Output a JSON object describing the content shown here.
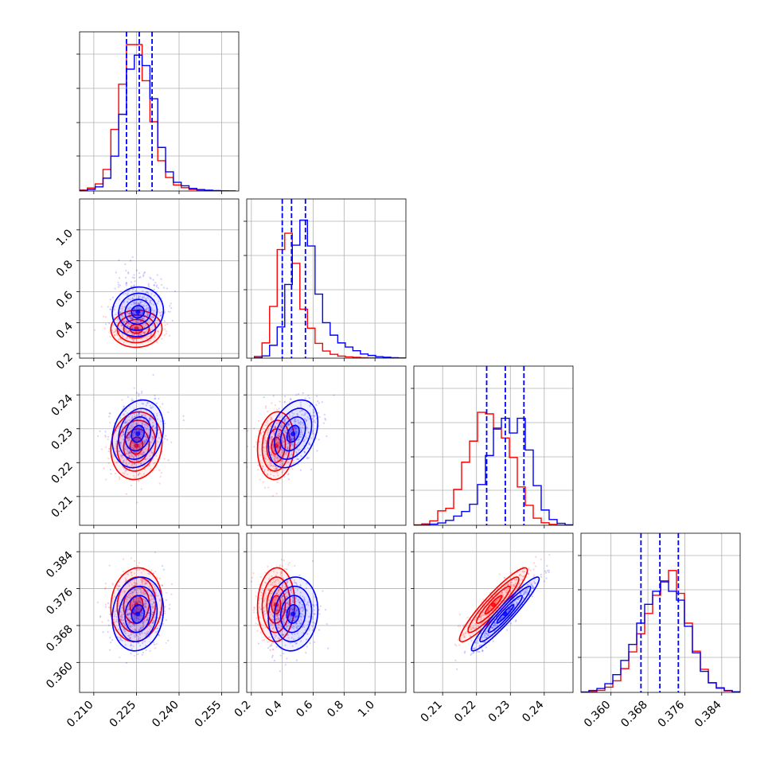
{
  "chart_data": {
    "type": "corner",
    "title": "",
    "colors": {
      "series_a": "#0000ff",
      "series_b": "#ff0000",
      "grid": "#b0b0b0",
      "frame": "#000000"
    },
    "parameters": [
      {
        "range": [
          0.205,
          0.261
        ],
        "ticks": [
          0.21,
          0.225,
          0.24,
          0.255
        ],
        "tick_labels": [
          "0.210",
          "0.225",
          "0.240",
          "0.255"
        ]
      },
      {
        "range": [
          0.17,
          1.2
        ],
        "ticks": [
          0.2,
          0.4,
          0.6,
          0.8,
          1.0
        ],
        "tick_labels": [
          "0.2",
          "0.4",
          "0.6",
          "0.8",
          "1.0"
        ]
      },
      {
        "range": [
          0.2015,
          0.2485
        ],
        "ticks": [
          0.21,
          0.22,
          0.23,
          0.24
        ],
        "tick_labels": [
          "0.21",
          "0.22",
          "0.23",
          "0.24"
        ]
      },
      {
        "range": [
          0.3535,
          0.388
        ],
        "ticks": [
          0.36,
          0.368,
          0.376,
          0.384
        ],
        "tick_labels": [
          "0.360",
          "0.368",
          "0.376",
          "0.384"
        ]
      }
    ],
    "series": [
      {
        "color": "#0000ff",
        "mean": [
          0.2255,
          0.47,
          0.2285,
          0.3705
        ],
        "sd": [
          0.0045,
          0.08,
          0.005,
          0.004
        ],
        "q16": [
          0.2215,
          0.4,
          0.223,
          0.3665
        ],
        "q50": [
          0.226,
          0.46,
          0.2285,
          0.3706
        ],
        "q84": [
          0.2305,
          0.55,
          0.234,
          0.3746
        ]
      },
      {
        "color": "#ff0000",
        "mean": [
          0.225,
          0.36,
          0.225,
          0.3725
        ],
        "sd": [
          0.0045,
          0.06,
          0.005,
          0.004
        ]
      }
    ],
    "histograms": [
      {
        "bins": [
          0.205,
          0.26
        ],
        "a": [
          0.3,
          1.0,
          2.6,
          8.1,
          22.0,
          48.4,
          76.9,
          85.7,
          79.1,
          58.2,
          27.5,
          12.1,
          5.5,
          3.3,
          1.6,
          0.9,
          0.5,
          0.3,
          0.1,
          0
        ],
        "b": [
          0.6,
          1.9,
          4.5,
          13.6,
          38.9,
          67.4,
          92.4,
          92.4,
          69.6,
          43.7,
          19.1,
          8.5,
          3.8,
          2.1,
          1.0,
          0.6,
          0.3,
          0.1,
          0,
          0
        ]
      },
      {
        "bins": [
          0.22,
          1.2
        ],
        "a": [
          0.3,
          1.4,
          8.1,
          19.7,
          46.5,
          71.3,
          87.1,
          70.8,
          40.4,
          22.4,
          14.5,
          9.6,
          7.0,
          4.7,
          2.6,
          1.7,
          0.9,
          0.6,
          0.3,
          0.1
        ],
        "b": [
          1.1,
          9.6,
          32.6,
          68.5,
          78.8,
          59.8,
          30.9,
          18.9,
          9.3,
          4.5,
          2.4,
          1.3,
          0.8,
          0.5,
          0.3,
          0.1,
          0,
          0,
          0,
          0
        ]
      },
      {
        "bins": [
          0.2015,
          0.2485
        ],
        "a": [
          0,
          0.3,
          0.7,
          1.5,
          3.1,
          5.8,
          8.7,
          13.3,
          25.7,
          44.0,
          61.3,
          67.5,
          58.2,
          67.5,
          47.5,
          25.0,
          9.6,
          3.6,
          1.2,
          0.3
        ],
        "b": [
          0.3,
          0.9,
          2.8,
          9.1,
          10.7,
          22.6,
          39.8,
          53.1,
          71.3,
          70.3,
          60.6,
          55.1,
          42.8,
          24.2,
          12.6,
          4.5,
          1.6,
          0.5,
          0.1,
          0
        ]
      },
      {
        "bins": [
          0.3535,
          0.388
        ],
        "a": [
          0.3,
          1.2,
          2.5,
          5.5,
          11.2,
          20.2,
          30.3,
          43.7,
          55.6,
          63.8,
          70.3,
          63.8,
          58.2,
          41.7,
          25.0,
          13.3,
          6.0,
          2.9,
          1.2,
          0.4
        ],
        "b": [
          0.1,
          0.5,
          1.3,
          3.3,
          7.3,
          15.0,
          25.6,
          37.0,
          49.8,
          61.3,
          69.6,
          76.9,
          62.5,
          43.7,
          26.0,
          14.6,
          6.2,
          2.6,
          1.0,
          0.3
        ]
      }
    ],
    "correlations": {
      "a": {
        "1_0": 0.05,
        "2_0": 0.2,
        "2_1": 0.35,
        "3_0": 0.12,
        "3_1": 0.1,
        "3_2": 0.95
      },
      "b": {
        "1_0": 0.02,
        "2_0": 0.1,
        "2_1": 0.1,
        "3_0": 0.08,
        "3_1": 0.05,
        "3_2": 0.93
      }
    }
  }
}
